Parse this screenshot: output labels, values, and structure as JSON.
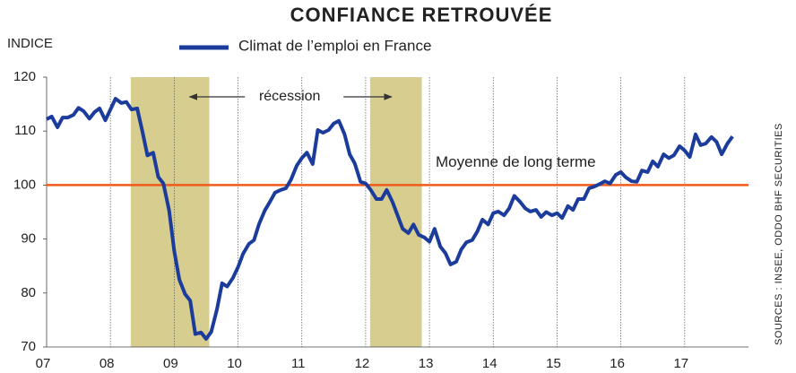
{
  "chart_data": {
    "type": "line",
    "title": "CONFIANCE RETROUVÉE",
    "y_label": "INDICE",
    "source": "SOURCES : INSEE, ODDO BHF SECURITIES",
    "xlim": [
      2007,
      2018
    ],
    "xticks": [
      {
        "value": 2007,
        "label": "07"
      },
      {
        "value": 2008,
        "label": "08"
      },
      {
        "value": 2009,
        "label": "09"
      },
      {
        "value": 2010,
        "label": "10"
      },
      {
        "value": 2011,
        "label": "11"
      },
      {
        "value": 2012,
        "label": "12"
      },
      {
        "value": 2013,
        "label": "13"
      },
      {
        "value": 2014,
        "label": "14"
      },
      {
        "value": 2015,
        "label": "15"
      },
      {
        "value": 2016,
        "label": "16"
      },
      {
        "value": 2017,
        "label": "17"
      }
    ],
    "ylim": [
      70,
      120
    ],
    "yticks": [
      70,
      80,
      90,
      100,
      110,
      120
    ],
    "x_grid": true,
    "recession_label": "récession",
    "recessions": [
      [
        2008.32,
        2009.55
      ],
      [
        2012.07,
        2012.88
      ]
    ],
    "recession_color": "#d6cd8f",
    "reference_line": {
      "value": 100,
      "label": "Moyenne de long terme",
      "color": "#f05a1a"
    },
    "x": [
      2007,
      2007.08,
      2007.17,
      2007.25,
      2007.33,
      2007.42,
      2007.5,
      2007.58,
      2007.67,
      2007.75,
      2007.83,
      2007.92,
      2008,
      2008.08,
      2008.17,
      2008.25,
      2008.33,
      2008.42,
      2008.5,
      2008.58,
      2008.67,
      2008.75,
      2008.83,
      2008.92,
      2009,
      2009.08,
      2009.17,
      2009.25,
      2009.33,
      2009.42,
      2009.5,
      2009.58,
      2009.67,
      2009.75,
      2009.83,
      2009.92,
      2010,
      2010.08,
      2010.17,
      2010.25,
      2010.33,
      2010.42,
      2010.5,
      2010.58,
      2010.67,
      2010.75,
      2010.83,
      2010.92,
      2011,
      2011.08,
      2011.17,
      2011.25,
      2011.33,
      2011.42,
      2011.5,
      2011.58,
      2011.67,
      2011.75,
      2011.83,
      2011.92,
      2012,
      2012.08,
      2012.17,
      2012.25,
      2012.33,
      2012.42,
      2012.5,
      2012.58,
      2012.67,
      2012.75,
      2012.83,
      2012.92,
      2013,
      2013.08,
      2013.17,
      2013.25,
      2013.33,
      2013.42,
      2013.5,
      2013.58,
      2013.67,
      2013.75,
      2013.83,
      2013.92,
      2014,
      2014.08,
      2014.17,
      2014.25,
      2014.33,
      2014.42,
      2014.5,
      2014.58,
      2014.67,
      2014.75,
      2014.83,
      2014.92,
      2015,
      2015.08,
      2015.17,
      2015.25,
      2015.33,
      2015.42,
      2015.5,
      2015.58,
      2015.67,
      2015.75,
      2015.83,
      2015.92,
      2016,
      2016.08,
      2016.17,
      2016.25,
      2016.33,
      2016.42,
      2016.5,
      2016.58,
      2016.67,
      2016.75,
      2016.83,
      2016.92,
      2017,
      2017.08,
      2017.17,
      2017.25,
      2017.33,
      2017.42,
      2017.5,
      2017.58,
      2017.67,
      2017.75
    ],
    "series": [
      {
        "name": "Climat de l’emploi en France",
        "color": "#1c3c9c",
        "values": [
          112.2,
          112.7,
          110.7,
          112.5,
          112.5,
          113,
          114.3,
          113.7,
          112.3,
          113.5,
          114.2,
          112,
          114,
          116,
          115.2,
          115.4,
          114,
          114.2,
          110,
          105.5,
          106,
          101.5,
          100.3,
          95.3,
          87.8,
          82.5,
          79.8,
          78.6,
          72.4,
          72.7,
          71.5,
          72.8,
          77,
          81.8,
          81.2,
          82.8,
          84.8,
          87.3,
          89.1,
          89.8,
          92.8,
          95.3,
          96.9,
          98.6,
          99.1,
          99.4,
          101,
          103.6,
          105,
          106,
          103.9,
          110.2,
          109.7,
          110.2,
          111.4,
          111.9,
          109.4,
          105.7,
          104,
          100.6,
          100.3,
          99.1,
          97.4,
          97.4,
          99.1,
          96.9,
          94.4,
          91.9,
          91.1,
          92.7,
          90.8,
          90.3,
          89.5,
          91.9,
          88.6,
          87.4,
          85.3,
          85.8,
          88.1,
          89.4,
          89.8,
          91.4,
          93.6,
          92.7,
          94.8,
          95.1,
          94.4,
          95.7,
          98,
          96.9,
          95.7,
          95.1,
          95.4,
          94.1,
          95,
          94.4,
          94.8,
          93.9,
          96.1,
          95.4,
          97.4,
          97.4,
          99.4,
          99.7,
          100.2,
          100.7,
          100.3,
          101.9,
          102.4,
          101.4,
          100.7,
          100.6,
          102.7,
          102.4,
          104.4,
          103.4,
          105.7,
          105,
          105.5,
          107.2,
          106.4,
          105.2,
          109.4,
          107.4,
          107.7,
          108.9,
          108,
          105.7,
          107.7,
          109
        ]
      }
    ]
  }
}
